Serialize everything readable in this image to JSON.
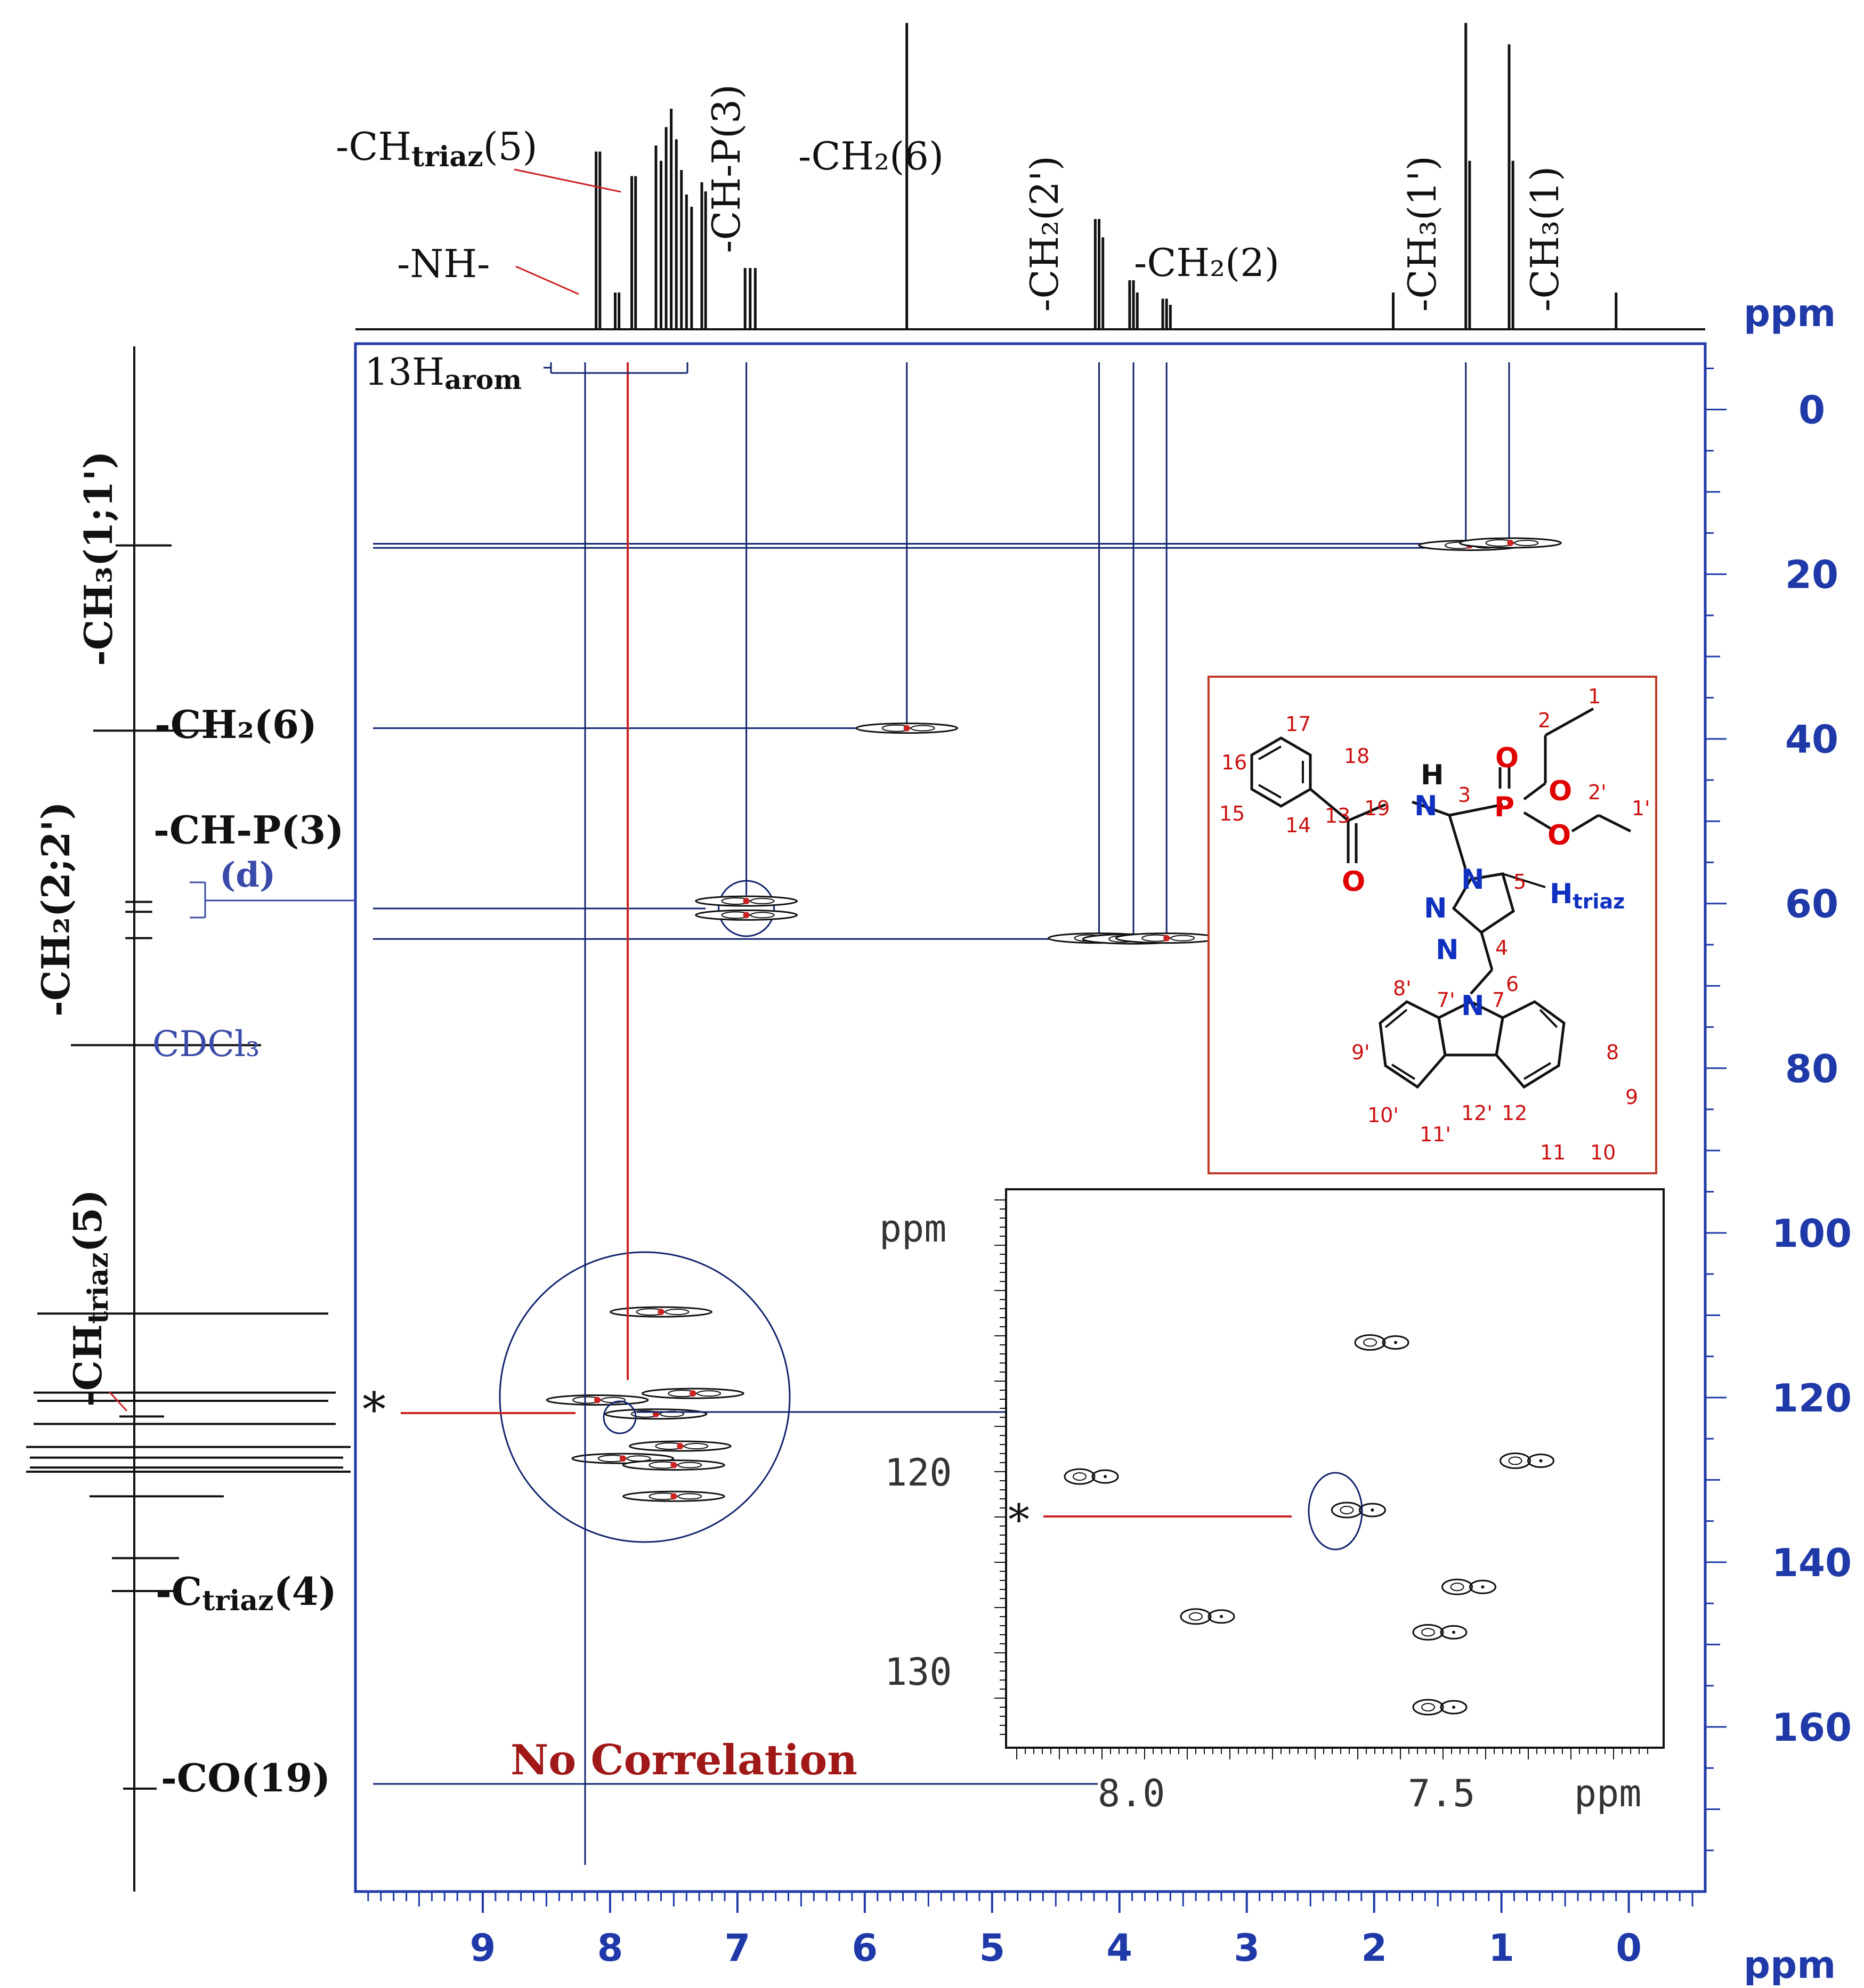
{
  "chart_data": {
    "type": "scatter",
    "title": "",
    "subtype": "2D HSQC NMR contour plot",
    "x_axis": {
      "label": "ppm",
      "range": [
        10,
        -0.6
      ],
      "ticks": [
        "9",
        "8",
        "7",
        "6",
        "5",
        "4",
        "3",
        "2",
        "1",
        "0"
      ]
    },
    "y_axis": {
      "label": "ppm",
      "range": [
        -8,
        180
      ],
      "ticks": [
        "0",
        "20",
        "40",
        "60",
        "80",
        "100",
        "120",
        "140",
        "160"
      ]
    },
    "h1_projection_peaks": [
      {
        "ppm": 8.11,
        "h": 0.58
      },
      {
        "ppm": 8.08,
        "h": 0.58
      },
      {
        "ppm": 7.96,
        "h": 0.12
      },
      {
        "ppm": 7.93,
        "h": 0.12
      },
      {
        "ppm": 7.83,
        "h": 0.5
      },
      {
        "ppm": 7.8,
        "h": 0.5
      },
      {
        "ppm": 7.64,
        "h": 0.6
      },
      {
        "ppm": 7.6,
        "h": 0.55
      },
      {
        "ppm": 7.56,
        "h": 0.66
      },
      {
        "ppm": 7.52,
        "h": 0.72
      },
      {
        "ppm": 7.48,
        "h": 0.62
      },
      {
        "ppm": 7.44,
        "h": 0.52
      },
      {
        "ppm": 7.4,
        "h": 0.44
      },
      {
        "ppm": 7.36,
        "h": 0.4
      },
      {
        "ppm": 7.28,
        "h": 0.48
      },
      {
        "ppm": 7.25,
        "h": 0.45
      },
      {
        "ppm": 6.94,
        "h": 0.2
      },
      {
        "ppm": 6.9,
        "h": 0.2
      },
      {
        "ppm": 6.86,
        "h": 0.2
      },
      {
        "ppm": 5.67,
        "h": 1.0
      },
      {
        "ppm": 4.19,
        "h": 0.36
      },
      {
        "ppm": 4.16,
        "h": 0.36
      },
      {
        "ppm": 4.13,
        "h": 0.3
      },
      {
        "ppm": 3.92,
        "h": 0.16
      },
      {
        "ppm": 3.89,
        "h": 0.16
      },
      {
        "ppm": 3.86,
        "h": 0.12
      },
      {
        "ppm": 3.66,
        "h": 0.1
      },
      {
        "ppm": 3.63,
        "h": 0.1
      },
      {
        "ppm": 3.6,
        "h": 0.08
      },
      {
        "ppm": 1.85,
        "h": 0.12
      },
      {
        "ppm": 1.28,
        "h": 1.0
      },
      {
        "ppm": 1.25,
        "h": 0.55
      },
      {
        "ppm": 0.94,
        "h": 0.93
      },
      {
        "ppm": 0.91,
        "h": 0.55
      },
      {
        "ppm": 0.1,
        "h": 0.12
      }
    ],
    "c13_projection_peaks": [
      {
        "ppm": 16.5,
        "len": 0.25
      },
      {
        "ppm": 39.0,
        "len": 0.55
      },
      {
        "ppm": 59.8,
        "len": 0.12
      },
      {
        "ppm": 61.0,
        "len": 0.12
      },
      {
        "ppm": 64.2,
        "len": 0.12
      },
      {
        "ppm": 77.2,
        "len": 0.85
      },
      {
        "ppm": 109.8,
        "len": 1.3
      },
      {
        "ppm": 119.4,
        "len": 1.35
      },
      {
        "ppm": 120.4,
        "len": 1.3
      },
      {
        "ppm": 122.3,
        "len": 0.2
      },
      {
        "ppm": 123.2,
        "len": 1.35
      },
      {
        "ppm": 126.0,
        "len": 1.45
      },
      {
        "ppm": 127.3,
        "len": 1.4
      },
      {
        "ppm": 128.5,
        "len": 1.4
      },
      {
        "ppm": 129.0,
        "len": 1.45
      },
      {
        "ppm": 132.0,
        "len": 0.6
      },
      {
        "ppm": 139.5,
        "len": 0.3
      },
      {
        "ppm": 143.5,
        "len": 0.3
      },
      {
        "ppm": 167.5,
        "len": 0.15
      }
    ],
    "cross_peaks": [
      {
        "h": 1.25,
        "c": 16.5,
        "label": "CH3(1')"
      },
      {
        "h": 0.93,
        "c": 16.2,
        "label": "CH3(1)"
      },
      {
        "h": 5.67,
        "c": 38.7,
        "label": "CH2(6)"
      },
      {
        "h": 6.93,
        "c": 59.7,
        "label": "CH-P(3)"
      },
      {
        "h": 6.93,
        "c": 61.4,
        "label": "CH-P(3)"
      },
      {
        "h": 4.16,
        "c": 64.2,
        "label": "CH2(2')"
      },
      {
        "h": 3.89,
        "c": 64.3,
        "label": "CH2(2)"
      },
      {
        "h": 3.63,
        "c": 64.2,
        "label": "CH2(2)"
      },
      {
        "h": 7.6,
        "c": 109.6,
        "label": "arom"
      },
      {
        "h": 7.35,
        "c": 119.5,
        "label": "arom"
      },
      {
        "h": 8.1,
        "c": 120.3,
        "label": "arom"
      },
      {
        "h": 7.64,
        "c": 122.0,
        "label": "CH-triaz(5)"
      },
      {
        "h": 7.45,
        "c": 125.9,
        "label": "arom"
      },
      {
        "h": 7.9,
        "c": 127.4,
        "label": "arom"
      },
      {
        "h": 7.5,
        "c": 128.2,
        "label": "arom"
      },
      {
        "h": 7.5,
        "c": 132.0,
        "label": "arom"
      }
    ],
    "inset": {
      "x_ticks": [
        "8.0",
        "7.5",
        "ppm"
      ],
      "y_ticks": [
        "120",
        "130"
      ],
      "y_label": "ppm",
      "marker": "*"
    }
  },
  "labels": {
    "ppm": "ppm",
    "ch_triaz_top": "-CH",
    "triaz_sub": "triaz",
    "ch_triaz_top_num": "(5)",
    "nh": "-NH-",
    "ch_p3_vertical": "-CH-P(3)",
    "ch2_6_top": "-CH₂(6)",
    "ch2_2p_top": "-CH₂(2')",
    "ch2_2_top": "-CH₂(2)",
    "ch3_1p_top": "-CH₃(1')",
    "ch3_1_top": "-CH₃(1)",
    "h13_arom": "13H",
    "arom_sub": "arom",
    "ch3_11_left": "-CH₃(1;1')",
    "ch2_6_left": "-CH₂(6)",
    "ch_p3_left": "-CH-P(3)",
    "d_label": "(d)",
    "ch2_22_left": "-CH₂(2;2')",
    "cdcl3": "CDCl₃",
    "ch_triaz5_left": "-CH",
    "ch_triaz5_left_num": "(5)",
    "c_triaz4": "-C",
    "c_triaz4_num": "(4)",
    "co19": "-CO(19)",
    "no_correlation": "No Correlation",
    "asterisk": "*",
    "h_triaz": "H",
    "triaz_mol_sub": "triaz"
  },
  "molecule": {
    "numbers": [
      "1",
      "2",
      "2'",
      "1'",
      "17",
      "18",
      "16",
      "15",
      "14",
      "13",
      "19",
      "3",
      "5",
      "4",
      "6",
      "8'",
      "7'",
      "7",
      "8",
      "9'",
      "9",
      "10'",
      "11'",
      "12'",
      "12",
      "11",
      "10"
    ],
    "atoms": [
      "H",
      "N",
      "O",
      "P",
      "O",
      "O",
      "N",
      "N",
      "N",
      "N",
      "O"
    ]
  },
  "colors": {
    "axis": "#1f3aa8",
    "navy": "#12246e",
    "red_line": "#cc2222",
    "mol_box": "#c0392b",
    "dark_red_text": "#a01818"
  }
}
